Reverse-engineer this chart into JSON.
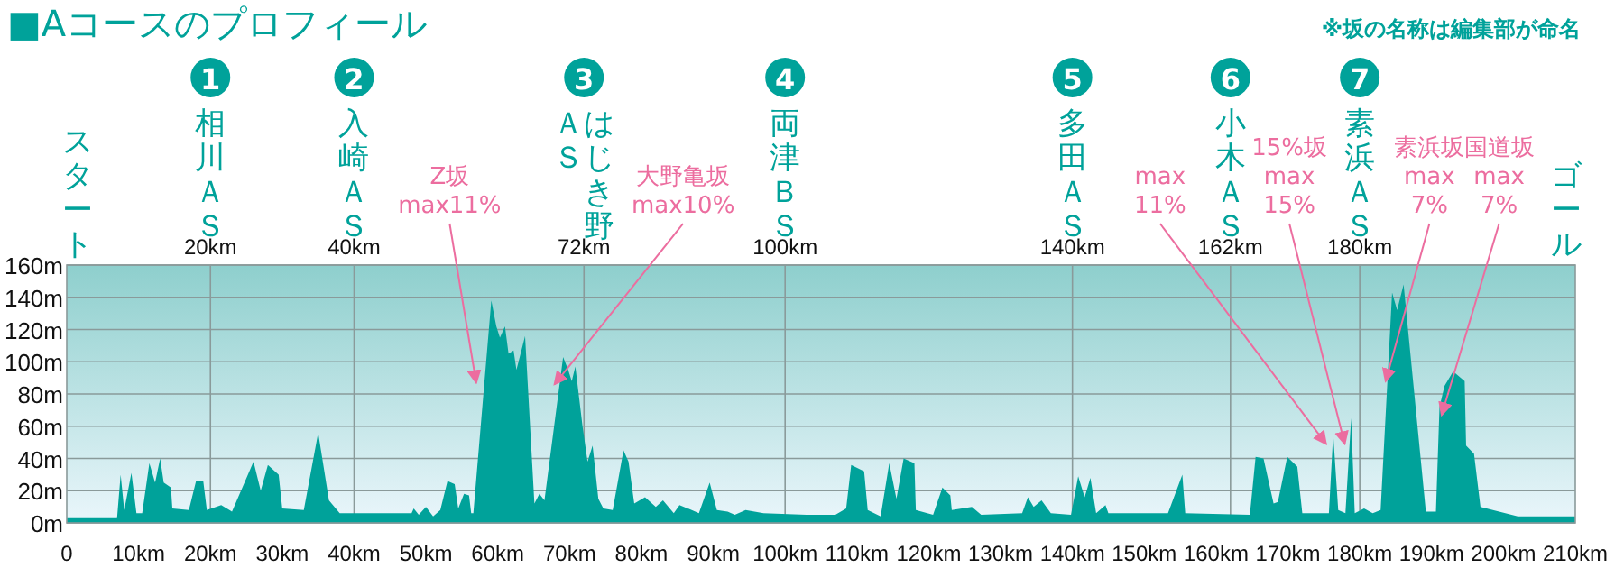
{
  "chart_data": {
    "type": "area",
    "title": "■Aコースのプロフィール",
    "color": "#00a29a",
    "x": [
      0,
      7,
      7.5,
      8,
      9,
      9.7,
      10.5,
      11.5,
      12.3,
      13,
      13.5,
      14.5,
      14.7,
      17,
      18,
      19,
      19.5,
      21.5,
      23,
      26,
      27,
      28,
      29.5,
      30,
      33,
      35,
      36.5,
      38,
      48,
      48.3,
      49,
      50,
      51,
      52,
      53,
      54,
      54.5,
      55.3,
      56,
      56.3,
      56.6,
      59.1,
      59.8,
      60.3,
      61,
      61.5,
      62.2,
      62.6,
      63.8,
      65.1,
      65.8,
      66.5,
      69.1,
      69.8,
      70.3,
      70.8,
      71.8,
      72.5,
      73.2,
      74,
      74.7,
      76,
      77.5,
      78.2,
      79,
      80.5,
      82,
      83,
      84.5,
      85.3,
      87,
      88,
      89.5,
      90.5,
      92,
      93,
      94.5,
      97,
      103,
      107,
      108.5,
      109.2,
      111,
      111.5,
      113.3,
      114.5,
      115.5,
      116.5,
      118,
      118.2,
      120.6,
      121.9,
      123,
      123.2,
      126,
      127.3,
      133,
      133.8,
      134.6,
      135.7,
      137,
      139.8,
      140.8,
      141.7,
      142.5,
      143.3,
      144.6,
      145,
      153.3,
      155.3,
      155.7,
      164.7,
      165.5,
      166.6,
      168,
      168.6,
      169.9,
      171.3,
      172,
      175.7,
      176.3,
      177,
      178,
      178.8,
      179.3,
      180.6,
      181.8,
      182.9,
      184.5,
      185.2,
      186.1,
      189.2,
      190.6,
      191.1,
      191.8,
      193,
      194.6,
      194.8,
      195.9,
      196.8,
      202,
      210
    ],
    "values": [
      3,
      3,
      30,
      8,
      31,
      6,
      6,
      37,
      25,
      40,
      25,
      22,
      9,
      8,
      26,
      26,
      8,
      11,
      7,
      38,
      20,
      36,
      30,
      9,
      8,
      56,
      14,
      6,
      6,
      9,
      5,
      10,
      4,
      8,
      26,
      24,
      9,
      18,
      17,
      6,
      6,
      138,
      122,
      115,
      122,
      105,
      107,
      95,
      116,
      12,
      18,
      14,
      103,
      95,
      88,
      97,
      60,
      38,
      48,
      15,
      9,
      8,
      45,
      38,
      12,
      16,
      10,
      14,
      6,
      11,
      8,
      6,
      25,
      8,
      7,
      5,
      8,
      6,
      5,
      5,
      9,
      36,
      32,
      8,
      4,
      37,
      15,
      40,
      37,
      8,
      5,
      22,
      17,
      8,
      10,
      5,
      6,
      16,
      10,
      14,
      6,
      5,
      29,
      16,
      28,
      6,
      11,
      6,
      6,
      30,
      6,
      5,
      41,
      40,
      12,
      13,
      41,
      35,
      6,
      6,
      55,
      8,
      6,
      65,
      6,
      9,
      6,
      8,
      143,
      132,
      148,
      7,
      7,
      72,
      85,
      94,
      88,
      48,
      43,
      10,
      4,
      4
    ],
    "xlim": [
      0,
      210
    ],
    "xticks": [
      0,
      {
        "value": 10,
        "label": "10km"
      },
      {
        "value": 20,
        "label": "20km"
      },
      {
        "value": 30,
        "label": "30km"
      },
      {
        "value": 40,
        "label": "40km"
      },
      {
        "value": 50,
        "label": "50km"
      },
      {
        "value": 60,
        "label": "60km"
      },
      {
        "value": 70,
        "label": "70km"
      },
      {
        "value": 80,
        "label": "80km"
      },
      {
        "value": 90,
        "label": "90km"
      },
      {
        "value": 100,
        "label": "100km"
      },
      {
        "value": 110,
        "label": "110km"
      },
      {
        "value": 120,
        "label": "120km"
      },
      {
        "value": 130,
        "label": "130km"
      },
      {
        "value": 140,
        "label": "140km"
      },
      {
        "value": 150,
        "label": "150km"
      },
      {
        "value": 160,
        "label": "160km"
      },
      {
        "value": 170,
        "label": "170km"
      },
      {
        "value": 180,
        "label": "180km"
      },
      {
        "value": 190,
        "label": "190km"
      },
      {
        "value": 200,
        "label": "200km"
      },
      {
        "value": 210,
        "label": "210km"
      }
    ],
    "ylim": [
      0,
      160
    ],
    "yticks": [
      {
        "value": 0,
        "label": "0m"
      },
      {
        "value": 20,
        "label": "20m"
      },
      {
        "value": 40,
        "label": "40m"
      },
      {
        "value": 60,
        "label": "60m"
      },
      {
        "value": 80,
        "label": "80m"
      },
      {
        "value": 100,
        "label": "100m"
      },
      {
        "value": 120,
        "label": "120m"
      },
      {
        "value": 140,
        "label": "140m"
      },
      {
        "value": 160,
        "label": "160m"
      }
    ],
    "grid": "y",
    "ref_lines": [
      {
        "axis": "x",
        "value": 20,
        "label": "1\n相川ＡＳ\n20km"
      },
      {
        "axis": "x",
        "value": 40,
        "label": "2\n入崎ＡＳ\n40km"
      },
      {
        "axis": "x",
        "value": 72,
        "label": "3\nはじき野ＡＳ\n72km"
      },
      {
        "axis": "x",
        "value": 100,
        "label": "4\n両津ＢＳ\n100km"
      },
      {
        "axis": "x",
        "value": 140,
        "label": "5\n多田ＡＳ\n140km"
      },
      {
        "axis": "x",
        "value": 162,
        "label": "6\n小木ＡＳ\n162km"
      },
      {
        "axis": "x",
        "value": 180,
        "label": "7\n素浜ＡＳ\n180km"
      }
    ],
    "annotations": [
      "※坂の名称は編集部が命名",
      "スタート",
      "ゴール",
      {
        "text": "Z坂\nmax11%",
        "x": 57,
        "y": 87
      },
      {
        "text": "大野亀坂\nmax10%",
        "x": 67.9,
        "y": 86
      },
      {
        "text": "max\n11%",
        "x": 175.3,
        "y": 49
      },
      {
        "text": "15%坂\nmax\n15%",
        "x": 177.9,
        "y": 49
      },
      {
        "text": "素浜坂\nmax\n7%",
        "x": 183.6,
        "y": 88
      },
      {
        "text": "国道坂\nmax\n7%",
        "x": 191.4,
        "y": 67
      }
    ]
  }
}
